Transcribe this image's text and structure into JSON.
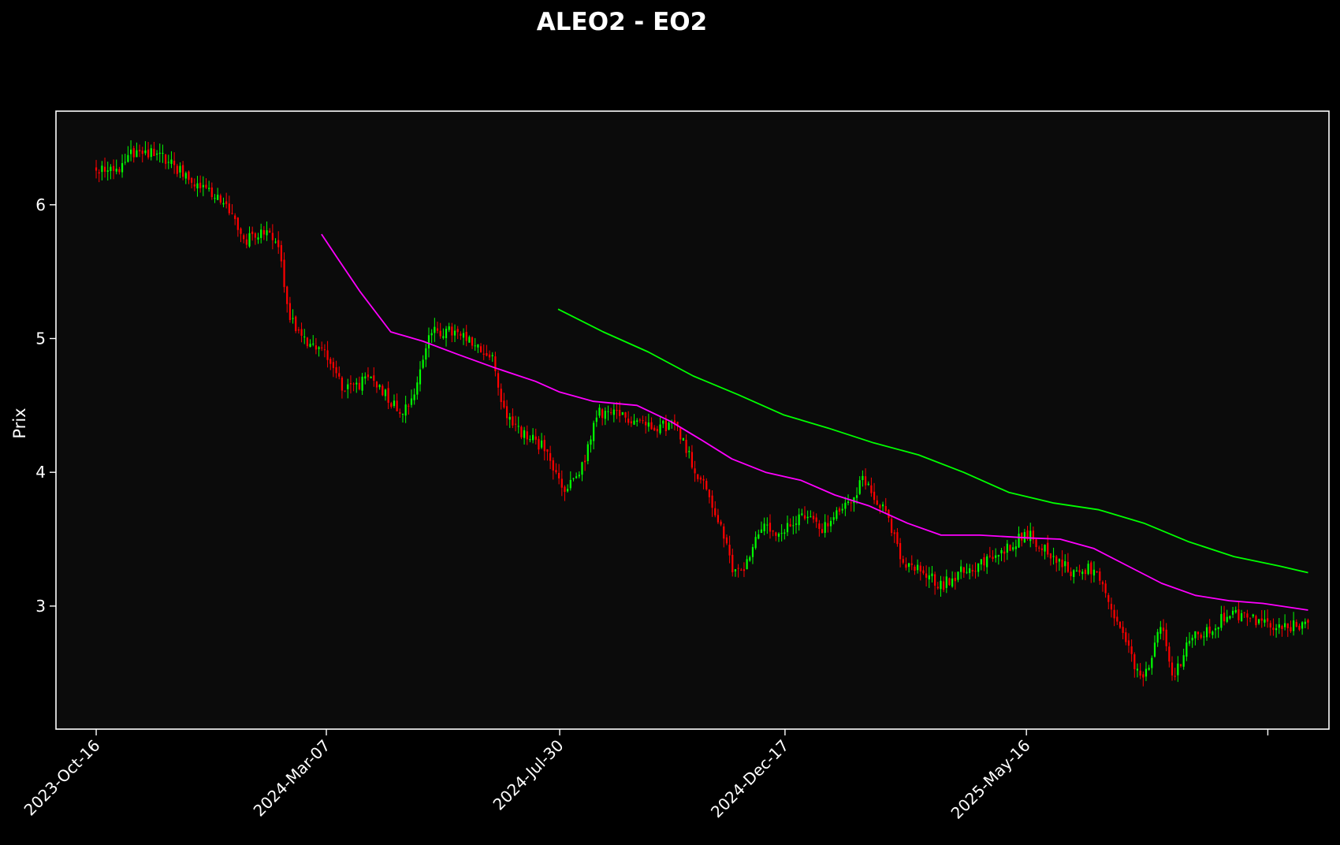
{
  "chart_data": {
    "type": "candlestick",
    "title": "ALEO2 - EO2",
    "xlabel": "",
    "ylabel": "Prix",
    "x_tick_labels": [
      "2023-Oct-16",
      "2024-Mar-07",
      "2024-Jul-30",
      "2024-Dec-17",
      "2025-May-16"
    ],
    "y_ticks": [
      3,
      4,
      5,
      6
    ],
    "ylim": [
      2.08,
      6.7
    ],
    "x_range": [
      "2023-Sep-21",
      "2025-Nov-20"
    ],
    "grid": false,
    "legend": "none",
    "colors": {
      "background": "#000000",
      "plot_background": "#0b0b0b",
      "frame": "#ffffff",
      "up": "#00ff00",
      "down": "#ff0000",
      "ma_fast": "#ff00ff",
      "ma_slow": "#00ff00"
    },
    "price_path": [
      [
        "2023-Oct-16",
        6.28
      ],
      [
        "2023-Oct-30",
        6.26
      ],
      [
        "2023-Nov-10",
        6.42
      ],
      [
        "2023-Nov-24",
        6.38
      ],
      [
        "2023-Dec-08",
        6.25
      ],
      [
        "2023-Dec-22",
        6.1
      ],
      [
        "2024-Jan-05",
        6.02
      ],
      [
        "2024-Jan-16",
        5.72
      ],
      [
        "2024-Jan-26",
        5.8
      ],
      [
        "2024-Feb-06",
        5.72
      ],
      [
        "2024-Feb-12",
        5.22
      ],
      [
        "2024-Feb-20",
        5.0
      ],
      [
        "2024-Mar-07",
        4.9
      ],
      [
        "2024-Mar-18",
        4.62
      ],
      [
        "2024-Apr-05",
        4.7
      ],
      [
        "2024-Apr-22",
        4.45
      ],
      [
        "2024-May-01",
        4.6
      ],
      [
        "2024-May-10",
        5.05
      ],
      [
        "2024-May-24",
        5.05
      ],
      [
        "2024-Jun-03",
        4.98
      ],
      [
        "2024-Jun-18",
        4.85
      ],
      [
        "2024-Jun-25",
        4.48
      ],
      [
        "2024-Jul-05",
        4.3
      ],
      [
        "2024-Jul-19",
        4.2
      ],
      [
        "2024-Aug-02",
        3.85
      ],
      [
        "2024-Aug-12",
        4.0
      ],
      [
        "2024-Aug-23",
        4.45
      ],
      [
        "2024-Sep-13",
        4.4
      ],
      [
        "2024-Sep-27",
        4.35
      ],
      [
        "2024-Oct-11",
        4.35
      ],
      [
        "2024-Oct-21",
        4.05
      ],
      [
        "2024-Oct-30",
        3.85
      ],
      [
        "2024-Nov-08",
        3.55
      ],
      [
        "2024-Nov-15",
        3.25
      ],
      [
        "2024-Nov-22",
        3.3
      ],
      [
        "2024-Dec-02",
        3.6
      ],
      [
        "2024-Dec-13",
        3.5
      ],
      [
        "2024-Dec-27",
        3.7
      ],
      [
        "2025-Jan-10",
        3.58
      ],
      [
        "2025-Jan-24",
        3.75
      ],
      [
        "2025-Feb-04",
        3.95
      ],
      [
        "2025-Feb-18",
        3.7
      ],
      [
        "2025-Feb-28",
        3.3
      ],
      [
        "2025-Mar-14",
        3.25
      ],
      [
        "2025-Mar-24",
        3.15
      ],
      [
        "2025-Apr-04",
        3.25
      ],
      [
        "2025-Apr-25",
        3.35
      ],
      [
        "2025-May-16",
        3.55
      ],
      [
        "2025-May-30",
        3.4
      ],
      [
        "2025-Jun-13",
        3.25
      ],
      [
        "2025-Jun-27",
        3.28
      ],
      [
        "2025-Jul-08",
        2.95
      ],
      [
        "2025-Jul-18",
        2.7
      ],
      [
        "2025-Jul-25",
        2.45
      ],
      [
        "2025-Aug-01",
        2.6
      ],
      [
        "2025-Aug-08",
        2.85
      ],
      [
        "2025-Aug-15",
        2.45
      ],
      [
        "2025-Aug-25",
        2.75
      ],
      [
        "2025-Sep-05",
        2.8
      ],
      [
        "2025-Sep-19",
        2.95
      ],
      [
        "2025-Oct-03",
        2.9
      ],
      [
        "2025-Oct-17",
        2.85
      ],
      [
        "2025-Nov-05",
        2.85
      ]
    ],
    "ma_fast": [
      [
        "2024-Mar-04",
        5.78
      ],
      [
        "2024-Mar-14",
        5.6
      ],
      [
        "2024-Mar-28",
        5.35
      ],
      [
        "2024-Apr-16",
        5.05
      ],
      [
        "2024-May-06",
        4.98
      ],
      [
        "2024-May-28",
        4.88
      ],
      [
        "2024-Jun-20",
        4.78
      ],
      [
        "2024-Jul-15",
        4.68
      ],
      [
        "2024-Jul-30",
        4.6
      ],
      [
        "2024-Aug-20",
        4.53
      ],
      [
        "2024-Sep-16",
        4.5
      ],
      [
        "2024-Oct-07",
        4.38
      ],
      [
        "2024-Oct-25",
        4.25
      ],
      [
        "2024-Nov-14",
        4.1
      ],
      [
        "2024-Dec-05",
        4.0
      ],
      [
        "2024-Dec-27",
        3.94
      ],
      [
        "2025-Jan-17",
        3.83
      ],
      [
        "2025-Feb-07",
        3.75
      ],
      [
        "2025-Mar-03",
        3.62
      ],
      [
        "2025-Mar-24",
        3.53
      ],
      [
        "2025-Apr-17",
        3.53
      ],
      [
        "2025-May-16",
        3.51
      ],
      [
        "2025-Jun-06",
        3.5
      ],
      [
        "2025-Jun-27",
        3.43
      ],
      [
        "2025-Jul-18",
        3.3
      ],
      [
        "2025-Aug-08",
        3.17
      ],
      [
        "2025-Aug-29",
        3.08
      ],
      [
        "2025-Sep-19",
        3.04
      ],
      [
        "2025-Oct-10",
        3.02
      ],
      [
        "2025-Nov-07",
        2.97
      ]
    ],
    "ma_slow": [
      [
        "2024-Jul-29",
        5.22
      ],
      [
        "2024-Aug-26",
        5.05
      ],
      [
        "2024-Sep-23",
        4.9
      ],
      [
        "2024-Oct-21",
        4.72
      ],
      [
        "2024-Nov-18",
        4.58
      ],
      [
        "2024-Dec-16",
        4.43
      ],
      [
        "2025-Jan-13",
        4.33
      ],
      [
        "2025-Feb-10",
        4.22
      ],
      [
        "2025-Mar-10",
        4.13
      ],
      [
        "2025-Apr-07",
        4.0
      ],
      [
        "2025-May-05",
        3.85
      ],
      [
        "2025-Jun-02",
        3.77
      ],
      [
        "2025-Jun-30",
        3.72
      ],
      [
        "2025-Jul-28",
        3.62
      ],
      [
        "2025-Aug-25",
        3.48
      ],
      [
        "2025-Sep-22",
        3.37
      ],
      [
        "2025-Oct-20",
        3.3
      ],
      [
        "2025-Nov-07",
        3.25
      ]
    ],
    "candle_span": [
      "2023-Oct-16",
      "2025-Nov-07"
    ],
    "candle_count": 420
  }
}
